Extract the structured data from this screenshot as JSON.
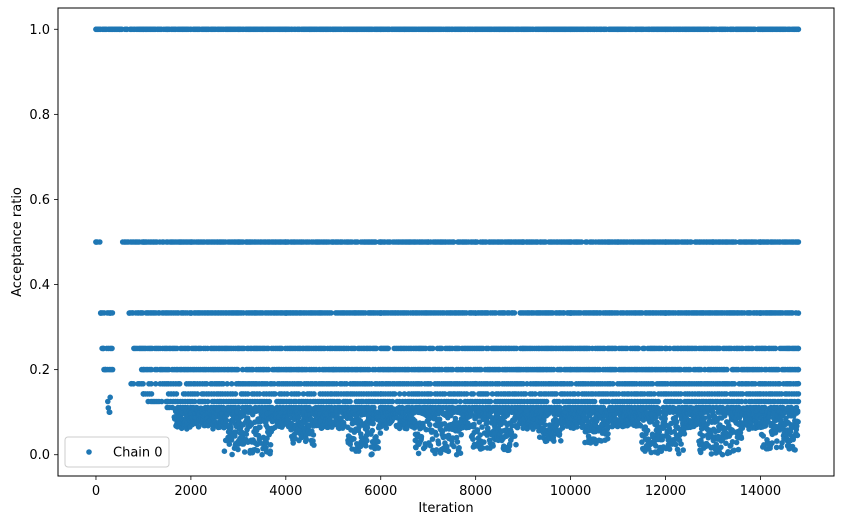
{
  "chart_data": {
    "type": "scatter",
    "xlabel": "Iteration",
    "ylabel": "Acceptance ratio",
    "xlim": [
      -800,
      15550
    ],
    "ylim": [
      -0.05,
      1.05
    ],
    "xticks": [
      0,
      2000,
      4000,
      6000,
      8000,
      10000,
      12000,
      14000
    ],
    "yticks": [
      0.0,
      0.2,
      0.4,
      0.6,
      0.8,
      1.0
    ],
    "xtick_labels": [
      "0",
      "2000",
      "4000",
      "6000",
      "8000",
      "10000",
      "12000",
      "14000"
    ],
    "ytick_labels": [
      "0.0",
      "0.2",
      "0.4",
      "0.6",
      "0.8",
      "1.0"
    ],
    "legend": {
      "location": "lower-left",
      "entries": [
        "Chain 0"
      ]
    },
    "grid": false,
    "x_range": [
      0,
      14800
    ],
    "series": [
      {
        "name": "Chain 0",
        "color": "#1f77b4",
        "marker": "circle",
        "points": [
          [
            0,
            1.0
          ],
          [
            500,
            1.0
          ],
          [
            1000,
            1.0
          ],
          [
            1500,
            1.0
          ],
          [
            2000,
            1.0
          ],
          [
            2500,
            1.0
          ],
          [
            3000,
            1.0
          ],
          [
            3500,
            1.0
          ],
          [
            4000,
            1.0
          ],
          [
            4500,
            1.0
          ],
          [
            5000,
            1.0
          ],
          [
            5500,
            1.0
          ],
          [
            6000,
            1.0
          ],
          [
            6500,
            1.0
          ],
          [
            7000,
            1.0
          ],
          [
            7500,
            1.0
          ],
          [
            8000,
            1.0
          ],
          [
            8500,
            1.0
          ],
          [
            9000,
            1.0
          ],
          [
            9500,
            1.0
          ],
          [
            10000,
            1.0
          ],
          [
            10500,
            1.0
          ],
          [
            11000,
            1.0
          ],
          [
            11500,
            1.0
          ],
          [
            12000,
            1.0
          ],
          [
            12500,
            1.0
          ],
          [
            13000,
            1.0
          ],
          [
            13500,
            1.0
          ],
          [
            14000,
            1.0
          ],
          [
            14800,
            1.0
          ],
          [
            0,
            0.5
          ],
          [
            1000,
            0.5
          ],
          [
            2000,
            0.5
          ],
          [
            3000,
            0.5
          ],
          [
            4000,
            0.5
          ],
          [
            5000,
            0.5
          ],
          [
            6000,
            0.5
          ],
          [
            7000,
            0.5
          ],
          [
            8000,
            0.5
          ],
          [
            9000,
            0.5
          ],
          [
            10000,
            0.5
          ],
          [
            11000,
            0.5
          ],
          [
            12000,
            0.5
          ],
          [
            13000,
            0.5
          ],
          [
            14000,
            0.5
          ],
          [
            14800,
            0.5
          ],
          [
            100,
            0.333
          ],
          [
            300,
            0.333
          ],
          [
            700,
            0.333
          ],
          [
            2000,
            0.333
          ],
          [
            4000,
            0.333
          ],
          [
            6000,
            0.333
          ],
          [
            8000,
            0.333
          ],
          [
            10000,
            0.333
          ],
          [
            12000,
            0.333
          ],
          [
            14000,
            0.333
          ],
          [
            14800,
            0.333
          ],
          [
            150,
            0.25
          ],
          [
            800,
            0.25
          ],
          [
            3000,
            0.25
          ],
          [
            6000,
            0.25
          ],
          [
            9000,
            0.25
          ],
          [
            12000,
            0.25
          ],
          [
            14800,
            0.25
          ],
          [
            200,
            0.2
          ],
          [
            1000,
            0.2
          ],
          [
            5000,
            0.2
          ],
          [
            10000,
            0.2
          ],
          [
            14800,
            0.2
          ],
          [
            750,
            0.167
          ],
          [
            3000,
            0.167
          ],
          [
            8000,
            0.167
          ],
          [
            14800,
            0.167
          ],
          [
            1000,
            0.143
          ],
          [
            6000,
            0.143
          ],
          [
            14800,
            0.143
          ],
          [
            1500,
            0.125
          ],
          [
            7000,
            0.125
          ],
          [
            14800,
            0.125
          ],
          [
            280,
            0.1
          ],
          [
            3500,
            0.0
          ],
          [
            5800,
            0.0
          ],
          [
            7600,
            0.0
          ],
          [
            13200,
            0.0
          ]
        ]
      }
    ]
  }
}
